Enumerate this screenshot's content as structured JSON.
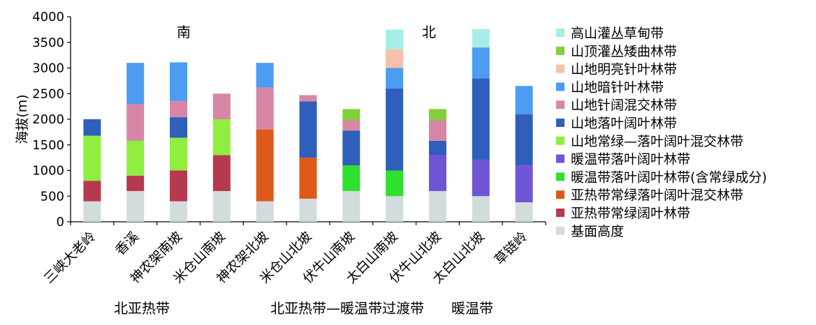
{
  "chart_data": {
    "type": "bar",
    "stacked": true,
    "ylabel": "海拔(m)",
    "ylim": [
      0,
      4000
    ],
    "yticks": [
      0,
      500,
      1000,
      1500,
      2000,
      2500,
      3000,
      3500,
      4000
    ],
    "grid": false,
    "legend_position": "right",
    "categories": [
      "三峡大老岭",
      "香溪",
      "神农架南坡",
      "米仓山南坡",
      "神农架北坡",
      "米仓山北坡",
      "伏牛山南坡",
      "太白山南坡",
      "伏牛山北坡",
      "太白山北坡",
      "草链岭"
    ],
    "series": [
      {
        "name": "基面高度",
        "color": "#d3dcdc",
        "values": [
          400,
          600,
          400,
          600,
          400,
          450,
          600,
          500,
          600,
          500,
          380
        ]
      },
      {
        "name": "亚热带常绿阔叶林带",
        "color": "#b5394f",
        "values": [
          400,
          300,
          600,
          700,
          0,
          0,
          0,
          0,
          0,
          0,
          0
        ]
      },
      {
        "name": "亚热带常绿落叶阔叶混交林带",
        "color": "#de5a18",
        "values": [
          0,
          0,
          0,
          0,
          1400,
          800,
          0,
          0,
          0,
          0,
          0
        ]
      },
      {
        "name": "暖温带落叶阔叶林带(含常绿成分)",
        "color": "#2fe02f",
        "values": [
          0,
          0,
          0,
          0,
          0,
          0,
          500,
          500,
          0,
          0,
          0
        ]
      },
      {
        "name": "暖温带落叶阔叶林带",
        "color": "#6f55d6",
        "values": [
          0,
          0,
          0,
          0,
          0,
          0,
          0,
          0,
          700,
          700,
          720
        ]
      },
      {
        "name": "山地常绿—落叶阔叶混交林带",
        "color": "#8fee3f",
        "values": [
          880,
          680,
          640,
          700,
          0,
          0,
          0,
          0,
          0,
          0,
          0
        ]
      },
      {
        "name": "山地落叶阔叶林带",
        "color": "#2f5fbb",
        "values": [
          320,
          0,
          400,
          0,
          0,
          1100,
          680,
          1600,
          280,
          1600,
          1000
        ]
      },
      {
        "name": "山地针阔混交林带",
        "color": "#d886a6",
        "values": [
          0,
          720,
          320,
          500,
          820,
          120,
          200,
          0,
          400,
          0,
          0
        ]
      },
      {
        "name": "山地暗针叶林带",
        "color": "#4c9cf2",
        "values": [
          0,
          800,
          750,
          0,
          480,
          0,
          0,
          400,
          0,
          600,
          550
        ]
      },
      {
        "name": "山地明亮针叶林带",
        "color": "#f7c0aa",
        "values": [
          0,
          0,
          0,
          0,
          0,
          0,
          0,
          360,
          0,
          0,
          0
        ]
      },
      {
        "name": "山顶灌丛矮曲林带",
        "color": "#84d03c",
        "values": [
          0,
          0,
          0,
          0,
          0,
          0,
          220,
          0,
          220,
          0,
          0
        ]
      },
      {
        "name": "高山灌丛草甸带",
        "color": "#a6eee6",
        "values": [
          0,
          0,
          0,
          0,
          0,
          0,
          0,
          390,
          0,
          360,
          0
        ]
      }
    ],
    "annotations": [
      "南",
      "北"
    ],
    "zone_labels": [
      "北亚热带",
      "北亚热带—暖温带过渡带",
      "暖温带"
    ]
  }
}
